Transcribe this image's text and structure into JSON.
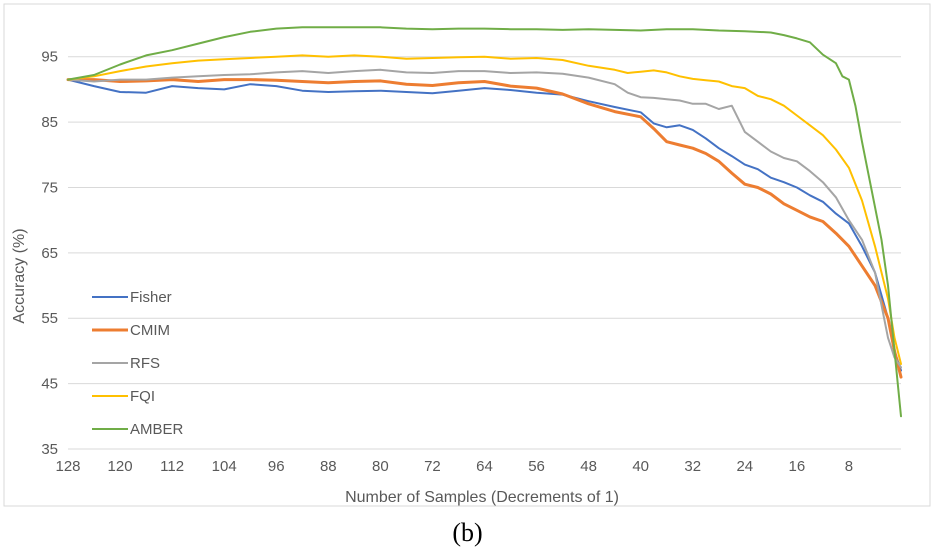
{
  "chart_data": {
    "type": "line",
    "title": "",
    "xlabel": "Number of Samples (Decrements of 1)",
    "ylabel": "Accuracy (%)",
    "xlim": [
      128,
      0
    ],
    "ylim": [
      35,
      100
    ],
    "x_ticks": [
      128,
      120,
      112,
      104,
      96,
      88,
      80,
      72,
      64,
      56,
      48,
      40,
      32,
      24,
      16,
      8
    ],
    "y_ticks": [
      35,
      45,
      55,
      65,
      75,
      85,
      95
    ],
    "grid": "horizontal",
    "legend_position": "inside-bottom-left",
    "series": [
      {
        "name": "Fisher",
        "color": "#4472C4",
        "points": [
          [
            128,
            91.5
          ],
          [
            124,
            90.5
          ],
          [
            120,
            89.6
          ],
          [
            116,
            89.5
          ],
          [
            112,
            90.5
          ],
          [
            108,
            90.2
          ],
          [
            104,
            90.0
          ],
          [
            100,
            90.8
          ],
          [
            96,
            90.5
          ],
          [
            92,
            89.8
          ],
          [
            88,
            89.6
          ],
          [
            84,
            89.7
          ],
          [
            80,
            89.8
          ],
          [
            76,
            89.6
          ],
          [
            72,
            89.4
          ],
          [
            68,
            89.8
          ],
          [
            64,
            90.2
          ],
          [
            60,
            89.9
          ],
          [
            56,
            89.5
          ],
          [
            52,
            89.2
          ],
          [
            48,
            88.2
          ],
          [
            44,
            87.3
          ],
          [
            40,
            86.5
          ],
          [
            38,
            84.8
          ],
          [
            36,
            84.2
          ],
          [
            34,
            84.5
          ],
          [
            32,
            83.8
          ],
          [
            30,
            82.5
          ],
          [
            28,
            81.0
          ],
          [
            26,
            79.8
          ],
          [
            24,
            78.5
          ],
          [
            22,
            77.8
          ],
          [
            20,
            76.5
          ],
          [
            18,
            75.8
          ],
          [
            16,
            75.0
          ],
          [
            14,
            73.8
          ],
          [
            12,
            72.8
          ],
          [
            10,
            71.0
          ],
          [
            8,
            69.5
          ],
          [
            6,
            66.0
          ],
          [
            4,
            62.0
          ],
          [
            2,
            55.0
          ],
          [
            1,
            50.0
          ],
          [
            0,
            47.0
          ]
        ]
      },
      {
        "name": "CMIM",
        "color": "#ED7D31",
        "points": [
          [
            128,
            91.5
          ],
          [
            124,
            91.5
          ],
          [
            120,
            91.2
          ],
          [
            116,
            91.3
          ],
          [
            112,
            91.5
          ],
          [
            108,
            91.2
          ],
          [
            104,
            91.5
          ],
          [
            100,
            91.5
          ],
          [
            96,
            91.4
          ],
          [
            92,
            91.2
          ],
          [
            88,
            91.0
          ],
          [
            84,
            91.2
          ],
          [
            80,
            91.3
          ],
          [
            76,
            90.8
          ],
          [
            72,
            90.6
          ],
          [
            68,
            91.0
          ],
          [
            64,
            91.2
          ],
          [
            60,
            90.5
          ],
          [
            56,
            90.2
          ],
          [
            52,
            89.3
          ],
          [
            48,
            87.8
          ],
          [
            44,
            86.6
          ],
          [
            40,
            85.8
          ],
          [
            38,
            84.0
          ],
          [
            36,
            82.0
          ],
          [
            34,
            81.5
          ],
          [
            32,
            81.0
          ],
          [
            30,
            80.2
          ],
          [
            28,
            79.0
          ],
          [
            26,
            77.2
          ],
          [
            24,
            75.5
          ],
          [
            22,
            75.0
          ],
          [
            20,
            74.0
          ],
          [
            18,
            72.5
          ],
          [
            16,
            71.5
          ],
          [
            14,
            70.5
          ],
          [
            12,
            69.8
          ],
          [
            10,
            68.0
          ],
          [
            8,
            66.0
          ],
          [
            6,
            63.0
          ],
          [
            4,
            60.0
          ],
          [
            2,
            55.0
          ],
          [
            1,
            50.0
          ],
          [
            0,
            46.0
          ]
        ]
      },
      {
        "name": "RFS",
        "color": "#A5A5A5",
        "points": [
          [
            128,
            91.5
          ],
          [
            124,
            91.2
          ],
          [
            120,
            91.5
          ],
          [
            116,
            91.5
          ],
          [
            112,
            91.8
          ],
          [
            108,
            92.0
          ],
          [
            104,
            92.2
          ],
          [
            100,
            92.3
          ],
          [
            96,
            92.6
          ],
          [
            92,
            92.8
          ],
          [
            88,
            92.5
          ],
          [
            84,
            92.8
          ],
          [
            80,
            93.0
          ],
          [
            76,
            92.6
          ],
          [
            72,
            92.5
          ],
          [
            68,
            92.8
          ],
          [
            64,
            92.8
          ],
          [
            60,
            92.5
          ],
          [
            56,
            92.6
          ],
          [
            52,
            92.4
          ],
          [
            48,
            91.8
          ],
          [
            44,
            90.8
          ],
          [
            42,
            89.5
          ],
          [
            40,
            88.8
          ],
          [
            38,
            88.7
          ],
          [
            36,
            88.5
          ],
          [
            34,
            88.3
          ],
          [
            32,
            87.8
          ],
          [
            30,
            87.8
          ],
          [
            28,
            87.0
          ],
          [
            26,
            87.5
          ],
          [
            24,
            83.5
          ],
          [
            22,
            82.0
          ],
          [
            20,
            80.5
          ],
          [
            18,
            79.5
          ],
          [
            16,
            79.0
          ],
          [
            14,
            77.5
          ],
          [
            12,
            75.8
          ],
          [
            10,
            73.5
          ],
          [
            8,
            70.0
          ],
          [
            6,
            67.0
          ],
          [
            4,
            62.0
          ],
          [
            2,
            52.0
          ],
          [
            1,
            49.0
          ],
          [
            0,
            47.5
          ]
        ]
      },
      {
        "name": "FQI",
        "color": "#FFC000",
        "points": [
          [
            128,
            91.5
          ],
          [
            124,
            92.0
          ],
          [
            120,
            92.8
          ],
          [
            116,
            93.5
          ],
          [
            112,
            94.0
          ],
          [
            108,
            94.4
          ],
          [
            104,
            94.6
          ],
          [
            100,
            94.8
          ],
          [
            96,
            95.0
          ],
          [
            92,
            95.2
          ],
          [
            88,
            95.0
          ],
          [
            84,
            95.2
          ],
          [
            80,
            95.0
          ],
          [
            76,
            94.7
          ],
          [
            72,
            94.8
          ],
          [
            68,
            94.9
          ],
          [
            64,
            95.0
          ],
          [
            60,
            94.7
          ],
          [
            56,
            94.8
          ],
          [
            52,
            94.5
          ],
          [
            48,
            93.6
          ],
          [
            44,
            93.0
          ],
          [
            42,
            92.5
          ],
          [
            40,
            92.7
          ],
          [
            38,
            92.9
          ],
          [
            36,
            92.6
          ],
          [
            34,
            92.0
          ],
          [
            32,
            91.6
          ],
          [
            30,
            91.4
          ],
          [
            28,
            91.2
          ],
          [
            26,
            90.5
          ],
          [
            24,
            90.2
          ],
          [
            22,
            89.0
          ],
          [
            20,
            88.5
          ],
          [
            18,
            87.5
          ],
          [
            16,
            86.0
          ],
          [
            14,
            84.5
          ],
          [
            12,
            83.0
          ],
          [
            10,
            80.8
          ],
          [
            8,
            78.0
          ],
          [
            6,
            73.0
          ],
          [
            4,
            66.0
          ],
          [
            2,
            58.0
          ],
          [
            1,
            52.0
          ],
          [
            0,
            48.0
          ]
        ]
      },
      {
        "name": "AMBER",
        "color": "#70AD47",
        "points": [
          [
            128,
            91.5
          ],
          [
            124,
            92.2
          ],
          [
            120,
            93.8
          ],
          [
            116,
            95.2
          ],
          [
            112,
            96.0
          ],
          [
            108,
            97.0
          ],
          [
            104,
            98.0
          ],
          [
            100,
            98.8
          ],
          [
            96,
            99.3
          ],
          [
            92,
            99.5
          ],
          [
            88,
            99.5
          ],
          [
            84,
            99.5
          ],
          [
            80,
            99.5
          ],
          [
            76,
            99.3
          ],
          [
            72,
            99.2
          ],
          [
            68,
            99.3
          ],
          [
            64,
            99.3
          ],
          [
            60,
            99.2
          ],
          [
            56,
            99.2
          ],
          [
            52,
            99.1
          ],
          [
            48,
            99.2
          ],
          [
            44,
            99.1
          ],
          [
            40,
            99.0
          ],
          [
            36,
            99.2
          ],
          [
            32,
            99.2
          ],
          [
            28,
            99.0
          ],
          [
            24,
            98.9
          ],
          [
            20,
            98.7
          ],
          [
            18,
            98.3
          ],
          [
            16,
            97.8
          ],
          [
            14,
            97.2
          ],
          [
            12,
            95.3
          ],
          [
            10,
            94.0
          ],
          [
            9,
            92.0
          ],
          [
            8,
            91.5
          ],
          [
            7,
            87.5
          ],
          [
            6,
            82.0
          ],
          [
            5,
            77.0
          ],
          [
            4,
            72.0
          ],
          [
            3,
            67.0
          ],
          [
            2,
            60.0
          ],
          [
            1,
            50.0
          ],
          [
            0,
            40.0
          ]
        ]
      }
    ]
  },
  "caption": "(b)"
}
